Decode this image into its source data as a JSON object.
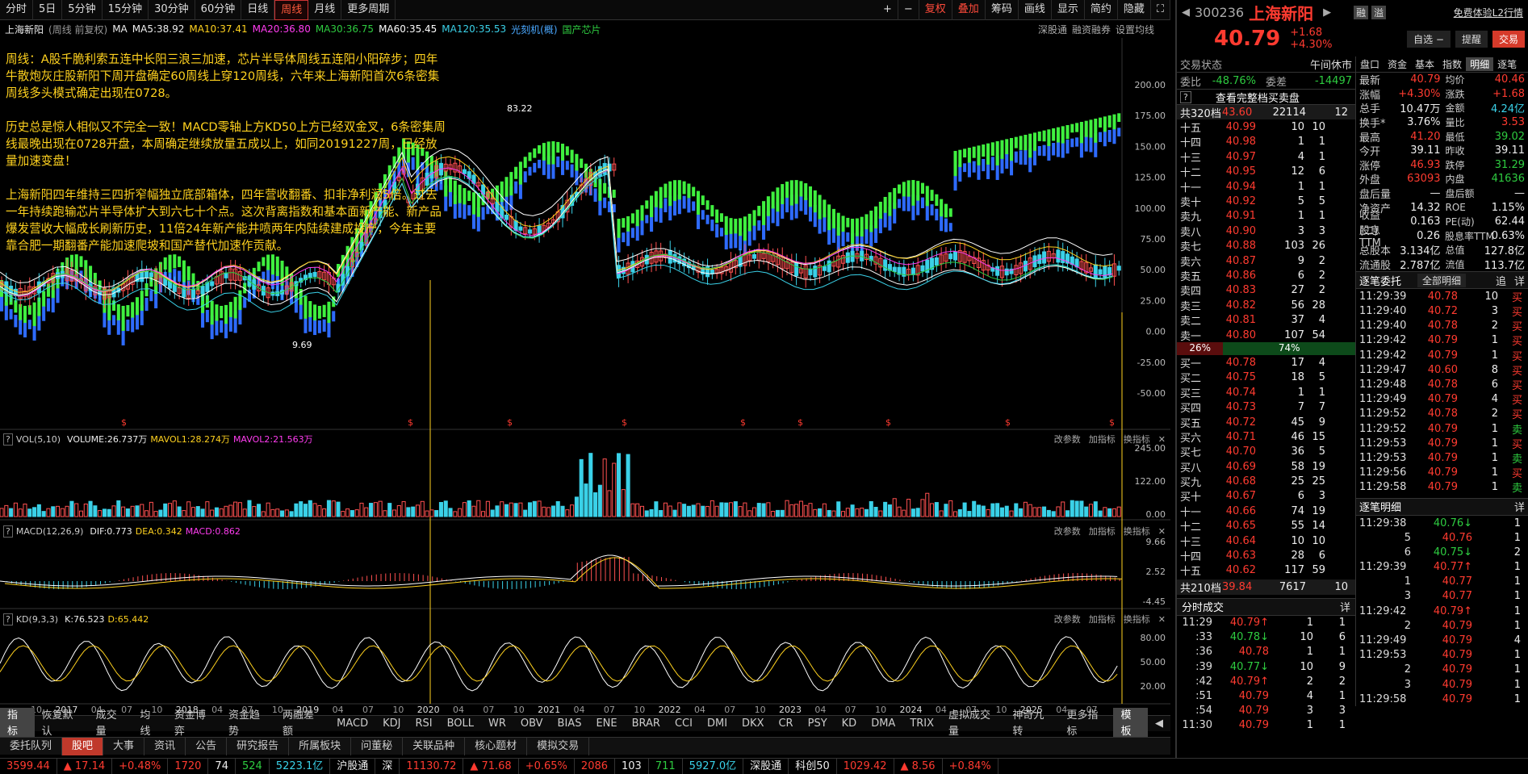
{
  "topbar": {
    "left": [
      "分时",
      "5日",
      "5分钟",
      "15分钟",
      "30分钟",
      "60分钟",
      "日线",
      "周线",
      "月线",
      "更多周期"
    ],
    "active": "周线",
    "right": [
      "复权",
      "叠加",
      "画线",
      "显示",
      "简约",
      "隐藏"
    ],
    "right_icons": [
      "plus-icon",
      "minus-icon"
    ],
    "extra": "筹码"
  },
  "legend": {
    "name": "上海新阳",
    "mode": "(周线 前复权)",
    "ma": "MA",
    "ma5": "MA5:38.92",
    "ma10": "MA10:37.41",
    "ma20": "MA20:36.80",
    "ma30": "MA30:36.75",
    "ma60": "MA60:35.45",
    "ma120": "MA120:35.53",
    "tags": [
      "光刻机(概)",
      "国产芯片"
    ],
    "right": [
      "深股通",
      "融资融券",
      "设置均线"
    ]
  },
  "annotation": {
    "p1": "周线：A股千脆利索五连中长阳三浪三加速，芯片半导体周线五连阳小阳碎步；四年牛散炮灰庄股新阳下周开盘确定60周线上穿120周线，六年来上海新阳首次6条密集周线多头模式确定出现在0728。",
    "p2": "历史总是惊人相似又不完全一致！MACD零轴上方KD50上方已经双金叉，6条密集周线最晚出现在0728开盘，本周确定继续放量五成以上，如同20191227周，已经放量加速变盘！",
    "p3": "上海新阳四年维持三四折窄幅独立底部箱体，四年营收翻番、扣非净利润5倍。过去一年持续跑输芯片半导体扩大到六七十个点。这次背离指数和基本面新产能、新产品爆发营收大幅成长刷新历史，11倍24年新产能井喷两年内陆续建成投产，今年主要靠合肥一期翻番产能加速爬坡和国产替代加速作贡献。"
  },
  "price_axis": [
    "200.00",
    "175.00",
    "150.00",
    "125.00",
    "100.00",
    "75.00",
    "50.00",
    "25.00",
    "0.00",
    "-25.00",
    "-50.00"
  ],
  "peak_label": "83.22",
  "low_label": "9.69",
  "vol_legend": {
    "name": "VOL(5,10)",
    "volume": "VOLUME:26.737万",
    "m1": "MAVOL1:28.274万",
    "m2": "MAVOL2:21.563万"
  },
  "vol_axis": [
    "245.00",
    "122.00",
    "0.00"
  ],
  "macd_legend": {
    "name": "MACD(12,26,9)",
    "dif": "DIF:0.773",
    "dea": "DEA:0.342",
    "macd": "MACD:0.862"
  },
  "macd_axis": [
    "9.66",
    "2.52",
    "-4.45"
  ],
  "kd_legend": {
    "name": "KD(9,3,3)",
    "k": "K:76.523",
    "d": "D:65.442"
  },
  "kd_axis": [
    "80.00",
    "50.00",
    "20.00"
  ],
  "pane_tools": [
    "改参数",
    "加指标",
    "换指标"
  ],
  "time_axis": [
    "10",
    "2017",
    "04",
    "07",
    "10",
    "2018",
    "04",
    "07",
    "10",
    "2019",
    "04",
    "07",
    "10",
    "2020",
    "04",
    "07",
    "10",
    "2021",
    "04",
    "07",
    "10",
    "2022",
    "04",
    "07",
    "10",
    "2023",
    "04",
    "07",
    "10",
    "2024",
    "04",
    "07",
    "10",
    "2025",
    "04",
    "07"
  ],
  "indicator_tabs": [
    "指标",
    "恢复默认",
    "成交量",
    "均线",
    "资金博弈",
    "资金趋势",
    "两融差额",
    "MACD",
    "KDJ",
    "RSI",
    "BOLL",
    "WR",
    "OBV",
    "BIAS",
    "ENE",
    "BRAR",
    "CCI",
    "DMI",
    "DKX",
    "CR",
    "PSY",
    "KD",
    "DMA",
    "TRIX",
    "虚拟成交量",
    "神奇九转",
    "更多指标",
    "模板"
  ],
  "bottom_tabs": [
    "委托队列",
    "股吧",
    "大事",
    "资讯",
    "公告",
    "研究报告",
    "所属板块",
    "问董秘",
    "关联品种",
    "核心题材",
    "模拟交易"
  ],
  "statusbar": [
    {
      "t": "3599.44",
      "c": "red"
    },
    {
      "t": "▲ 17.14",
      "c": "red"
    },
    {
      "t": "+0.48%",
      "c": "red"
    },
    {
      "t": "1720",
      "c": "red"
    },
    {
      "t": "74",
      "c": "white"
    },
    {
      "t": "524",
      "c": "green"
    },
    {
      "t": "5223.1亿",
      "c": "cyan"
    },
    {
      "t": "沪股通",
      "c": "white"
    },
    {
      "t": "深",
      "c": "white"
    },
    {
      "t": "11130.72",
      "c": "red"
    },
    {
      "t": "▲ 71.68",
      "c": "red"
    },
    {
      "t": "+0.65%",
      "c": "red"
    },
    {
      "t": "2086",
      "c": "red"
    },
    {
      "t": "103",
      "c": "white"
    },
    {
      "t": "711",
      "c": "green"
    },
    {
      "t": "5927.0亿",
      "c": "cyan"
    },
    {
      "t": "深股通",
      "c": "white"
    },
    {
      "t": "科创50",
      "c": "white"
    },
    {
      "t": "1029.42",
      "c": "red"
    },
    {
      "t": "▲ 8.56",
      "c": "red"
    },
    {
      "t": "+0.84%",
      "c": "red"
    }
  ],
  "quote": {
    "code": "300236",
    "name": "上海新阳",
    "price": "40.79",
    "change": "+1.68",
    "pct": "+4.30%",
    "badges": [
      "融",
      "溢"
    ],
    "promo": "免费体验L2行情",
    "btn_zixuan": "自选 −",
    "btn_tixing": "提醒",
    "btn_jiaoyi": "交易",
    "status_label": "交易状态",
    "status": "午间休市",
    "weibi_l": "委比",
    "weibi": "-48.76%",
    "weicha_l": "委差",
    "weicha": "-14497",
    "full_book": "查看完整档买卖盘",
    "sell_total": {
      "l": "共320档",
      "p": "43.60",
      "v": "22114",
      "c": "12"
    },
    "buy_total": {
      "l": "共210档",
      "p": "39.84",
      "v": "7617",
      "c": "10"
    },
    "ratio_l": "26%",
    "ratio_r": "74%",
    "asks": [
      {
        "l": "十五",
        "p": "40.99",
        "v": "10",
        "c": "10"
      },
      {
        "l": "十四",
        "p": "40.98",
        "v": "1",
        "c": "1"
      },
      {
        "l": "十三",
        "p": "40.97",
        "v": "4",
        "c": "1"
      },
      {
        "l": "十二",
        "p": "40.95",
        "v": "12",
        "c": "6"
      },
      {
        "l": "十一",
        "p": "40.94",
        "v": "1",
        "c": "1"
      },
      {
        "l": "卖十",
        "p": "40.92",
        "v": "5",
        "c": "5"
      },
      {
        "l": "卖九",
        "p": "40.91",
        "v": "1",
        "c": "1"
      },
      {
        "l": "卖八",
        "p": "40.90",
        "v": "3",
        "c": "3"
      },
      {
        "l": "卖七",
        "p": "40.88",
        "v": "103",
        "c": "26"
      },
      {
        "l": "卖六",
        "p": "40.87",
        "v": "9",
        "c": "2"
      },
      {
        "l": "卖五",
        "p": "40.86",
        "v": "6",
        "c": "2"
      },
      {
        "l": "卖四",
        "p": "40.83",
        "v": "27",
        "c": "2"
      },
      {
        "l": "卖三",
        "p": "40.82",
        "v": "56",
        "c": "28"
      },
      {
        "l": "卖二",
        "p": "40.81",
        "v": "37",
        "c": "4"
      },
      {
        "l": "卖一",
        "p": "40.80",
        "v": "107",
        "c": "54"
      }
    ],
    "bids": [
      {
        "l": "买一",
        "p": "40.78",
        "v": "17",
        "c": "4"
      },
      {
        "l": "买二",
        "p": "40.75",
        "v": "18",
        "c": "5"
      },
      {
        "l": "买三",
        "p": "40.74",
        "v": "1",
        "c": "1"
      },
      {
        "l": "买四",
        "p": "40.73",
        "v": "7",
        "c": "7"
      },
      {
        "l": "买五",
        "p": "40.72",
        "v": "45",
        "c": "9"
      },
      {
        "l": "买六",
        "p": "40.71",
        "v": "46",
        "c": "15"
      },
      {
        "l": "买七",
        "p": "40.70",
        "v": "36",
        "c": "5"
      },
      {
        "l": "买八",
        "p": "40.69",
        "v": "58",
        "c": "19"
      },
      {
        "l": "买九",
        "p": "40.68",
        "v": "25",
        "c": "25"
      },
      {
        "l": "买十",
        "p": "40.67",
        "v": "6",
        "c": "3"
      },
      {
        "l": "十一",
        "p": "40.66",
        "v": "74",
        "c": "19"
      },
      {
        "l": "十二",
        "p": "40.65",
        "v": "55",
        "c": "14"
      },
      {
        "l": "十三",
        "p": "40.64",
        "v": "10",
        "c": "10"
      },
      {
        "l": "十四",
        "p": "40.63",
        "v": "28",
        "c": "6"
      },
      {
        "l": "十五",
        "p": "40.62",
        "v": "117",
        "c": "59"
      }
    ],
    "tabs": [
      "盘口",
      "资金",
      "基本",
      "指数",
      "明细",
      "逐笔"
    ],
    "stats": [
      [
        "最新",
        "40.79",
        "red",
        "均价",
        "40.46",
        "red"
      ],
      [
        "涨幅",
        "+4.30%",
        "red",
        "涨跌",
        "+1.68",
        "red"
      ],
      [
        "总手",
        "10.47万",
        "white",
        "金额",
        "4.24亿",
        "cyan"
      ],
      [
        "换手*",
        "3.76%",
        "white",
        "量比",
        "3.53",
        "red"
      ],
      [
        "最高",
        "41.20",
        "red",
        "最低",
        "39.02",
        "green"
      ],
      [
        "今开",
        "39.11",
        "white",
        "昨收",
        "39.11",
        "white"
      ],
      [
        "涨停",
        "46.93",
        "red",
        "跌停",
        "31.29",
        "green"
      ],
      [
        "外盘",
        "63093",
        "red",
        "内盘",
        "41636",
        "green"
      ],
      [
        "盘后量",
        "—",
        "white",
        "盘后额",
        "—",
        "white"
      ],
      [
        "净资产",
        "14.32",
        "white",
        "ROE",
        "1.15%",
        "white"
      ],
      [
        "收益(二)",
        "0.163",
        "white",
        "PE(动)",
        "62.44",
        "white"
      ],
      [
        "股息TTM",
        "0.26",
        "white",
        "股息率TTM",
        "0.63%",
        "white"
      ],
      [
        "总股本",
        "3.134亿",
        "white",
        "总值",
        "127.8亿",
        "white"
      ],
      [
        "流通股",
        "2.787亿",
        "white",
        "流值",
        "113.7亿",
        "white"
      ]
    ],
    "zbwt_title": "逐笔委托",
    "zbwt_filter": "全部明细",
    "zbwt_btns": [
      "追",
      "详"
    ],
    "zbwt": [
      [
        "11:29:39",
        "40.78",
        "red",
        "10",
        "买"
      ],
      [
        "11:29:40",
        "40.72",
        "red",
        "3",
        "买"
      ],
      [
        "11:29:40",
        "40.78",
        "red",
        "2",
        "买"
      ],
      [
        "11:29:42",
        "40.79",
        "red",
        "1",
        "买"
      ],
      [
        "11:29:42",
        "40.79",
        "red",
        "1",
        "买"
      ],
      [
        "11:29:47",
        "40.60",
        "red",
        "8",
        "买"
      ],
      [
        "11:29:48",
        "40.78",
        "red",
        "6",
        "买"
      ],
      [
        "11:29:49",
        "40.79",
        "red",
        "4",
        "买"
      ],
      [
        "11:29:52",
        "40.78",
        "red",
        "2",
        "买"
      ],
      [
        "11:29:52",
        "40.79",
        "red",
        "1",
        "卖"
      ],
      [
        "11:29:53",
        "40.79",
        "red",
        "1",
        "买"
      ],
      [
        "11:29:53",
        "40.79",
        "red",
        "1",
        "卖"
      ],
      [
        "11:29:56",
        "40.79",
        "red",
        "1",
        "买"
      ],
      [
        "11:29:58",
        "40.79",
        "red",
        "1",
        "卖"
      ]
    ],
    "zbmx_title": "逐笔明细",
    "zbmx_btn": "详",
    "zbmx": [
      [
        "11:29:38",
        "40.76↓",
        "green",
        "1"
      ],
      [
        "5",
        "40.76",
        "red",
        "1"
      ],
      [
        "6",
        "40.75↓",
        "green",
        "2"
      ],
      [
        "11:29:39",
        "40.77↑",
        "red",
        "1"
      ],
      [
        "1",
        "40.77",
        "red",
        "1"
      ],
      [
        "3",
        "40.77",
        "red",
        "1"
      ],
      [
        "11:29:42",
        "40.79↑",
        "red",
        "1"
      ],
      [
        "2",
        "40.79",
        "red",
        "1"
      ],
      [
        "11:29:49",
        "40.79",
        "red",
        "4"
      ],
      [
        "11:29:53",
        "40.79",
        "red",
        "1"
      ],
      [
        "2",
        "40.79",
        "red",
        "1"
      ],
      [
        "3",
        "40.79",
        "red",
        "1"
      ],
      [
        "11:29:58",
        "40.79",
        "red",
        "1"
      ]
    ],
    "fscj_title": "分时成交",
    "fscj_btn": "详",
    "fscj": [
      [
        "11:29",
        "40.79↑",
        "red",
        "1",
        "1"
      ],
      [
        ":33",
        "40.78↓",
        "green",
        "10",
        "6"
      ],
      [
        ":36",
        "40.78",
        "red",
        "1",
        "1"
      ],
      [
        ":39",
        "40.77↓",
        "green",
        "10",
        "9"
      ],
      [
        ":42",
        "40.79↑",
        "red",
        "2",
        "2"
      ],
      [
        ":51",
        "40.79",
        "red",
        "4",
        "1"
      ],
      [
        ":54",
        "40.79",
        "red",
        "3",
        "3"
      ],
      [
        "11:30",
        "40.79",
        "red",
        "1",
        "1"
      ]
    ]
  }
}
